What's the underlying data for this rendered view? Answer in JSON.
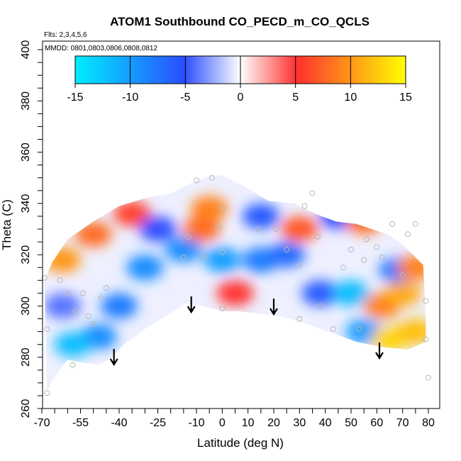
{
  "chart_data": {
    "type": "heatmap",
    "title": "ATOM1 Southbound CO_PECD_m_CO_QCLS",
    "subtitle_flights": "Flts: 2,3,4,5,6",
    "subtitle_dates": "MMDD: 0801,0803,0806,0808,0812",
    "xlabel": "Latitude (deg N)",
    "ylabel": "Theta (C)",
    "xlim": [
      -70,
      80
    ],
    "ylim": [
      260,
      400
    ],
    "x_tick_labels": [
      "-70",
      "-55",
      "-40",
      "-25",
      "-10",
      "0",
      "10",
      "20",
      "30",
      "40",
      "50",
      "60",
      "70",
      "80"
    ],
    "y_tick_labels": [
      "260",
      "280",
      "300",
      "320",
      "340",
      "360",
      "380",
      "400"
    ],
    "colorbar": {
      "range": [
        -15,
        15
      ],
      "tick_labels": [
        "-15",
        "-10",
        "-5",
        "0",
        "5",
        "10",
        "15"
      ],
      "colors": [
        "#00eeff",
        "#2a4dff",
        "#ffffff",
        "#ff3030",
        "#ffff00"
      ]
    },
    "arrows_latitude": [
      -42,
      -12,
      20,
      61
    ],
    "field_regions": [
      {
        "lat": -62,
        "theta": 318,
        "value": 10
      },
      {
        "lat": -50,
        "theta": 328,
        "value": 8
      },
      {
        "lat": -35,
        "theta": 336,
        "value": 6
      },
      {
        "lat": -25,
        "theta": 330,
        "value": -5
      },
      {
        "lat": -30,
        "theta": 315,
        "value": -9
      },
      {
        "lat": -40,
        "theta": 300,
        "value": -8
      },
      {
        "lat": -48,
        "theta": 288,
        "value": -9
      },
      {
        "lat": -58,
        "theta": 285,
        "value": -12
      },
      {
        "lat": -62,
        "theta": 300,
        "value": -4
      },
      {
        "lat": -15,
        "theta": 322,
        "value": -9
      },
      {
        "lat": 0,
        "theta": 318,
        "value": -10
      },
      {
        "lat": 15,
        "theta": 318,
        "value": -8
      },
      {
        "lat": 25,
        "theta": 320,
        "value": -7
      },
      {
        "lat": 5,
        "theta": 305,
        "value": 5
      },
      {
        "lat": -5,
        "theta": 338,
        "value": 9
      },
      {
        "lat": -8,
        "theta": 330,
        "value": 8
      },
      {
        "lat": 15,
        "theta": 335,
        "value": -6
      },
      {
        "lat": 30,
        "theta": 330,
        "value": 7
      },
      {
        "lat": 45,
        "theta": 335,
        "value": -5
      },
      {
        "lat": 55,
        "theta": 333,
        "value": 8
      },
      {
        "lat": 38,
        "theta": 305,
        "value": -6
      },
      {
        "lat": 50,
        "theta": 305,
        "value": -12
      },
      {
        "lat": 62,
        "theta": 300,
        "value": 9
      },
      {
        "lat": 70,
        "theta": 305,
        "value": 11
      },
      {
        "lat": 68,
        "theta": 314,
        "value": -8
      },
      {
        "lat": 55,
        "theta": 290,
        "value": -10
      },
      {
        "lat": 65,
        "theta": 287,
        "value": 13
      },
      {
        "lat": 75,
        "theta": 290,
        "value": 12
      },
      {
        "lat": 75,
        "theta": 315,
        "value": 9
      }
    ],
    "observation_points": [
      {
        "lat": -69,
        "theta": 311
      },
      {
        "lat": -68,
        "theta": 291
      },
      {
        "lat": -68,
        "theta": 266
      },
      {
        "lat": -63,
        "theta": 310
      },
      {
        "lat": -60,
        "theta": 305
      },
      {
        "lat": -57,
        "theta": 298
      },
      {
        "lat": -54,
        "theta": 305
      },
      {
        "lat": -52,
        "theta": 296
      },
      {
        "lat": -50,
        "theta": 293
      },
      {
        "lat": -47,
        "theta": 303
      },
      {
        "lat": -45,
        "theta": 307
      },
      {
        "lat": -58,
        "theta": 277
      },
      {
        "lat": -15,
        "theta": 319
      },
      {
        "lat": -13,
        "theta": 327
      },
      {
        "lat": -10,
        "theta": 349
      },
      {
        "lat": -7,
        "theta": 319
      },
      {
        "lat": -4,
        "theta": 350
      },
      {
        "lat": -1,
        "theta": 331
      },
      {
        "lat": 0,
        "theta": 338
      },
      {
        "lat": 0,
        "theta": 321
      },
      {
        "lat": 0,
        "theta": 299
      },
      {
        "lat": 14,
        "theta": 330
      },
      {
        "lat": 21,
        "theta": 330
      },
      {
        "lat": 25,
        "theta": 322
      },
      {
        "lat": 30,
        "theta": 316
      },
      {
        "lat": 30,
        "theta": 295
      },
      {
        "lat": 32,
        "theta": 339
      },
      {
        "lat": 35,
        "theta": 344
      },
      {
        "lat": 37,
        "theta": 327
      },
      {
        "lat": 38,
        "theta": 300
      },
      {
        "lat": 43,
        "theta": 291
      },
      {
        "lat": 47,
        "theta": 315
      },
      {
        "lat": 50,
        "theta": 322
      },
      {
        "lat": 53,
        "theta": 291
      },
      {
        "lat": 55,
        "theta": 318
      },
      {
        "lat": 56,
        "theta": 326
      },
      {
        "lat": 60,
        "theta": 323
      },
      {
        "lat": 62,
        "theta": 319
      },
      {
        "lat": 66,
        "theta": 332
      },
      {
        "lat": 70,
        "theta": 312
      },
      {
        "lat": 72,
        "theta": 328
      },
      {
        "lat": 75,
        "theta": 332
      },
      {
        "lat": 79,
        "theta": 302
      },
      {
        "lat": 79,
        "theta": 287
      },
      {
        "lat": 80,
        "theta": 272
      }
    ],
    "legend_placement": "top"
  }
}
